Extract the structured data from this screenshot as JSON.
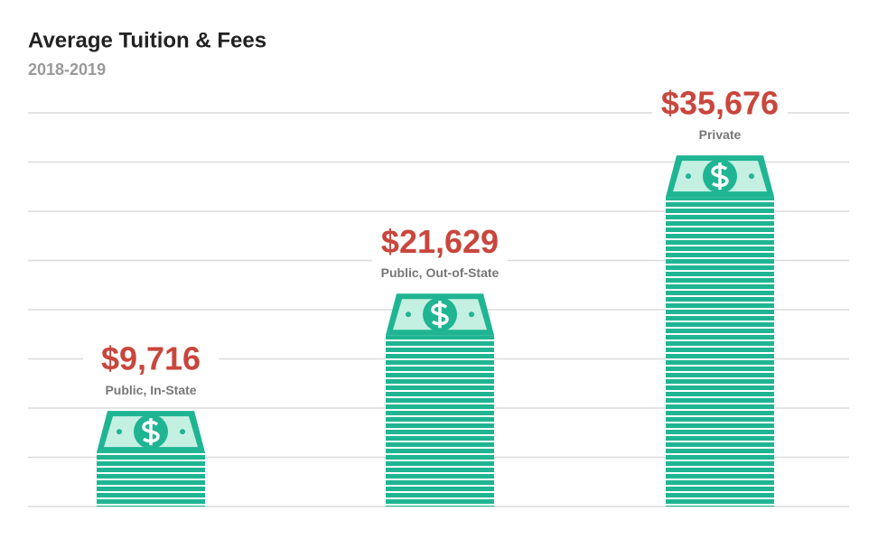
{
  "chart_data": {
    "type": "money-stack",
    "title": "Average Tuition & Fees",
    "subtitle": "2018-2019",
    "categories": [
      "Public, In-State",
      "Public, Out-of-State",
      "Private"
    ],
    "values": [
      9716,
      21629,
      35676
    ],
    "value_labels": [
      "$9,716",
      "$21,629",
      "$35,676"
    ],
    "color": "#1fb592",
    "ylim": [
      0,
      40000
    ],
    "yticks": [
      0,
      5000,
      10000,
      15000,
      20000,
      25000,
      30000,
      35000,
      40000
    ],
    "grid": true
  }
}
